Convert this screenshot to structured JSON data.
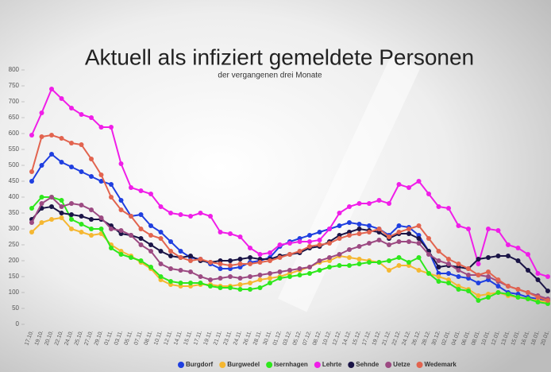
{
  "chart_data": {
    "type": "line",
    "title": "Aktuell als infiziert gemeldete Personen",
    "subtitle": "der vergangenen drei Monate",
    "categories": [
      "17.10.",
      "19.10.",
      "20.10.",
      "22.10.",
      "24.10.",
      "25.10.",
      "27.10.",
      "29.10.",
      "01.11.",
      "03.11.",
      "05.11.",
      "07.11.",
      "08.11.",
      "10.11.",
      "12.11.",
      "14.11.",
      "15.11.",
      "17.11.",
      "19.11.",
      "21.11.",
      "23.11.",
      "24.11.",
      "26.11.",
      "28.11.",
      "30.11.",
      "01.12.",
      "03.12.",
      "05.12.",
      "07.12.",
      "08.12.",
      "10.12.",
      "12.12.",
      "14.12.",
      "15.12.",
      "17.12.",
      "19.12.",
      "21.12.",
      "22.12.",
      "24.12.",
      "26.12.",
      "28.12.",
      "30.12.",
      "02.01.",
      "04.01.",
      "06.01.",
      "08.01.",
      "10.01.",
      "12.01.",
      "13.01.",
      "15.01.",
      "16.01.",
      "18.01.",
      "20.01."
    ],
    "ylim": [
      0,
      800
    ],
    "yticks": [
      0,
      50,
      100,
      150,
      200,
      250,
      300,
      350,
      400,
      450,
      500,
      550,
      600,
      650,
      700,
      750,
      800
    ],
    "series": [
      {
        "name": "Burgdorf",
        "color": "#1f3fe0",
        "values": [
          450,
          500,
          535,
          510,
          495,
          480,
          465,
          450,
          440,
          390,
          340,
          345,
          310,
          290,
          260,
          230,
          210,
          205,
          190,
          175,
          175,
          180,
          195,
          200,
          210,
          245,
          260,
          270,
          280,
          290,
          300,
          310,
          320,
          315,
          310,
          300,
          280,
          310,
          305,
          280,
          230,
          160,
          160,
          150,
          145,
          130,
          140,
          120,
          100,
          95,
          85,
          80,
          75
        ]
      },
      {
        "name": "Burgwedel",
        "color": "#f5b731",
        "values": [
          290,
          320,
          330,
          335,
          300,
          290,
          280,
          285,
          250,
          230,
          215,
          195,
          175,
          140,
          125,
          120,
          120,
          125,
          125,
          120,
          120,
          125,
          130,
          140,
          145,
          150,
          160,
          170,
          180,
          195,
          200,
          215,
          210,
          205,
          200,
          195,
          170,
          185,
          185,
          170,
          160,
          150,
          140,
          120,
          110,
          90,
          95,
          100,
          90,
          85,
          80,
          75,
          70
        ]
      },
      {
        "name": "Isernhagen",
        "color": "#2ee81c",
        "values": [
          365,
          400,
          400,
          390,
          330,
          315,
          300,
          300,
          240,
          220,
          210,
          200,
          180,
          150,
          135,
          130,
          130,
          130,
          120,
          115,
          115,
          110,
          110,
          115,
          130,
          145,
          150,
          155,
          160,
          170,
          180,
          185,
          185,
          190,
          195,
          195,
          200,
          210,
          195,
          210,
          160,
          135,
          130,
          110,
          105,
          75,
          85,
          100,
          95,
          85,
          80,
          70,
          65
        ]
      },
      {
        "name": "Lehrte",
        "color": "#f01ee8",
        "values": [
          595,
          665,
          740,
          710,
          680,
          660,
          650,
          620,
          620,
          505,
          430,
          420,
          410,
          370,
          350,
          345,
          340,
          350,
          340,
          290,
          285,
          275,
          240,
          220,
          225,
          250,
          255,
          260,
          260,
          265,
          300,
          350,
          370,
          380,
          380,
          390,
          380,
          440,
          430,
          450,
          410,
          370,
          365,
          310,
          300,
          190,
          300,
          295,
          250,
          240,
          220,
          160,
          150
        ]
      },
      {
        "name": "Sehnde",
        "color": "#1a1446",
        "values": [
          330,
          365,
          370,
          350,
          345,
          340,
          330,
          330,
          310,
          285,
          280,
          270,
          250,
          230,
          215,
          210,
          215,
          200,
          195,
          200,
          200,
          205,
          210,
          205,
          205,
          215,
          220,
          225,
          240,
          245,
          260,
          280,
          290,
          300,
          295,
          290,
          270,
          285,
          285,
          270,
          230,
          180,
          185,
          180,
          175,
          205,
          210,
          215,
          215,
          200,
          170,
          140,
          105
        ]
      },
      {
        "name": "Uetze",
        "color": "#9c4a82",
        "values": [
          320,
          380,
          400,
          370,
          380,
          375,
          360,
          335,
          300,
          295,
          280,
          250,
          230,
          190,
          175,
          170,
          165,
          150,
          140,
          145,
          150,
          145,
          150,
          155,
          160,
          165,
          170,
          175,
          180,
          200,
          210,
          220,
          235,
          245,
          255,
          265,
          250,
          260,
          260,
          255,
          220,
          200,
          190,
          170,
          155,
          155,
          150,
          135,
          120,
          110,
          100,
          90,
          80
        ]
      },
      {
        "name": "Wedemark",
        "color": "#e2644f",
        "values": [
          480,
          590,
          595,
          585,
          570,
          565,
          520,
          470,
          400,
          360,
          340,
          300,
          280,
          270,
          230,
          210,
          200,
          205,
          195,
          190,
          185,
          190,
          190,
          195,
          200,
          210,
          220,
          230,
          245,
          250,
          255,
          270,
          280,
          285,
          290,
          300,
          275,
          290,
          300,
          310,
          270,
          230,
          205,
          190,
          175,
          155,
          165,
          140,
          120,
          110,
          100,
          85,
          75
        ]
      }
    ],
    "legend": "bottom"
  }
}
